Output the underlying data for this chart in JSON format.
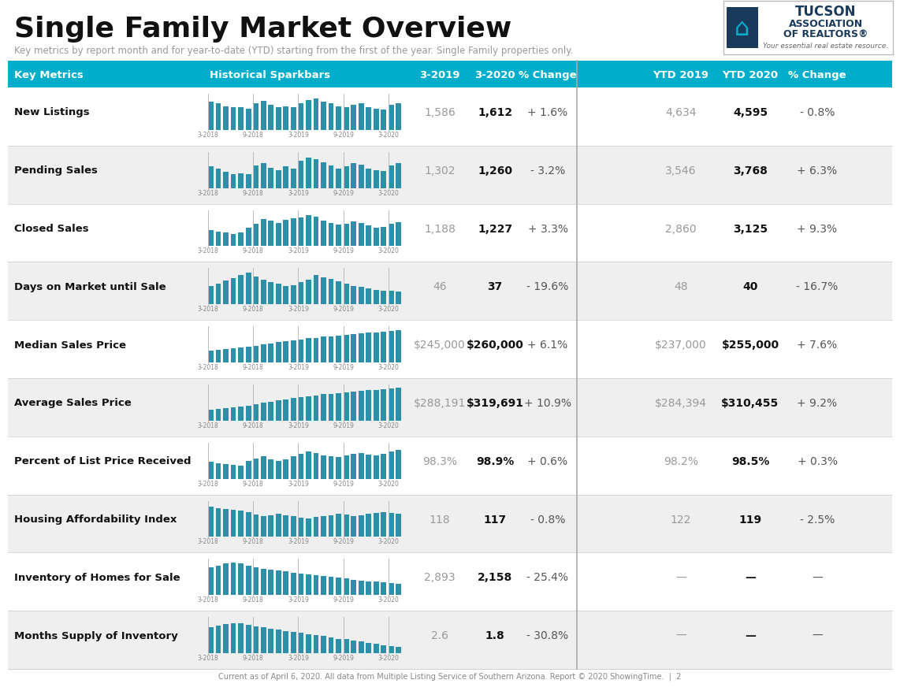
{
  "title": "Single Family Market Overview",
  "subtitle": "Key metrics by report month and for year-to-date (YTD) starting from the first of the year. Single Family properties only.",
  "header_bg": "#00AECC",
  "footer_text": "Current as of April 6, 2020. All data from Multiple Listing Service of Southern Arizona. Report © 2020 ShowingTime.  |  2",
  "rows": [
    {
      "metric": "New Listings",
      "v2019": "1,586",
      "v2020": "1,612",
      "pct": "+ 1.6%",
      "ytd2019": "4,634",
      "ytd2020": "4,595",
      "ytdpct": "- 0.8%",
      "spark": [
        0.85,
        0.8,
        0.72,
        0.68,
        0.7,
        0.65,
        0.82,
        0.88,
        0.75,
        0.7,
        0.72,
        0.68,
        0.8,
        0.9,
        0.95,
        0.85,
        0.8,
        0.72,
        0.68,
        0.75,
        0.8,
        0.7,
        0.65,
        0.62,
        0.75,
        0.82
      ]
    },
    {
      "metric": "Pending Sales",
      "v2019": "1,302",
      "v2020": "1,260",
      "pct": "- 3.2%",
      "ytd2019": "3,546",
      "ytd2020": "3,768",
      "ytdpct": "+ 6.3%",
      "spark": [
        0.65,
        0.6,
        0.5,
        0.42,
        0.45,
        0.42,
        0.68,
        0.75,
        0.62,
        0.55,
        0.65,
        0.6,
        0.82,
        0.92,
        0.88,
        0.78,
        0.68,
        0.6,
        0.65,
        0.75,
        0.7,
        0.6,
        0.55,
        0.52,
        0.68,
        0.75
      ]
    },
    {
      "metric": "Closed Sales",
      "v2019": "1,188",
      "v2020": "1,227",
      "pct": "+ 3.3%",
      "ytd2019": "2,860",
      "ytd2020": "3,125",
      "ytdpct": "+ 9.3%",
      "spark": [
        0.48,
        0.45,
        0.42,
        0.38,
        0.42,
        0.55,
        0.68,
        0.82,
        0.78,
        0.7,
        0.8,
        0.85,
        0.88,
        0.95,
        0.9,
        0.78,
        0.7,
        0.65,
        0.68,
        0.75,
        0.7,
        0.62,
        0.55,
        0.58,
        0.68,
        0.72
      ]
    },
    {
      "metric": "Days on Market until Sale",
      "v2019": "46",
      "v2020": "37",
      "pct": "- 19.6%",
      "ytd2019": "48",
      "ytd2020": "40",
      "ytdpct": "- 16.7%",
      "spark": [
        0.55,
        0.62,
        0.72,
        0.8,
        0.88,
        0.95,
        0.85,
        0.75,
        0.68,
        0.62,
        0.55,
        0.58,
        0.68,
        0.75,
        0.88,
        0.82,
        0.78,
        0.7,
        0.62,
        0.55,
        0.52,
        0.48,
        0.44,
        0.42,
        0.4,
        0.38
      ]
    },
    {
      "metric": "Median Sales Price",
      "v2019": "$245,000",
      "v2020": "$260,000",
      "pct": "+ 6.1%",
      "ytd2019": "$237,000",
      "ytd2020": "$255,000",
      "ytdpct": "+ 7.6%",
      "spark": [
        0.35,
        0.38,
        0.4,
        0.42,
        0.45,
        0.48,
        0.5,
        0.55,
        0.58,
        0.62,
        0.65,
        0.68,
        0.7,
        0.73,
        0.75,
        0.78,
        0.8,
        0.82,
        0.84,
        0.86,
        0.88,
        0.9,
        0.92,
        0.94,
        0.95,
        0.98
      ]
    },
    {
      "metric": "Average Sales Price",
      "v2019": "$288,191",
      "v2020": "$319,691",
      "pct": "+ 10.9%",
      "ytd2019": "$284,394",
      "ytd2020": "$310,455",
      "ytdpct": "+ 9.2%",
      "spark": [
        0.32,
        0.35,
        0.38,
        0.4,
        0.42,
        0.46,
        0.5,
        0.54,
        0.58,
        0.62,
        0.65,
        0.68,
        0.71,
        0.74,
        0.77,
        0.8,
        0.82,
        0.84,
        0.86,
        0.88,
        0.9,
        0.92,
        0.94,
        0.95,
        0.97,
        0.99
      ]
    },
    {
      "metric": "Percent of List Price Received",
      "v2019": "98.3%",
      "v2020": "98.9%",
      "pct": "+ 0.6%",
      "ytd2019": "98.2%",
      "ytd2020": "98.5%",
      "ytdpct": "+ 0.3%",
      "spark": [
        0.52,
        0.48,
        0.45,
        0.42,
        0.4,
        0.55,
        0.62,
        0.68,
        0.58,
        0.55,
        0.6,
        0.68,
        0.75,
        0.82,
        0.78,
        0.72,
        0.68,
        0.65,
        0.7,
        0.76,
        0.78,
        0.74,
        0.72,
        0.76,
        0.82,
        0.88
      ]
    },
    {
      "metric": "Housing Affordability Index",
      "v2019": "118",
      "v2020": "117",
      "pct": "- 0.8%",
      "ytd2019": "122",
      "ytd2020": "119",
      "ytdpct": "- 2.5%",
      "spark": [
        0.92,
        0.88,
        0.85,
        0.82,
        0.8,
        0.75,
        0.68,
        0.62,
        0.65,
        0.7,
        0.65,
        0.62,
        0.58,
        0.55,
        0.6,
        0.63,
        0.66,
        0.7,
        0.68,
        0.62,
        0.65,
        0.7,
        0.72,
        0.75,
        0.72,
        0.7
      ]
    },
    {
      "metric": "Inventory of Homes for Sale",
      "v2019": "2,893",
      "v2020": "2,158",
      "pct": "- 25.4%",
      "ytd2019": "—",
      "ytd2020": "—",
      "ytdpct": "—",
      "spark": [
        0.85,
        0.9,
        0.95,
        0.98,
        0.95,
        0.9,
        0.85,
        0.8,
        0.78,
        0.75,
        0.72,
        0.68,
        0.65,
        0.62,
        0.6,
        0.58,
        0.55,
        0.52,
        0.5,
        0.47,
        0.44,
        0.42,
        0.4,
        0.38,
        0.36,
        0.34
      ]
    },
    {
      "metric": "Months Supply of Inventory",
      "v2019": "2.6",
      "v2020": "1.8",
      "pct": "- 30.8%",
      "ytd2019": "—",
      "ytd2020": "—",
      "ytdpct": "—",
      "spark": [
        0.8,
        0.84,
        0.88,
        0.92,
        0.9,
        0.86,
        0.82,
        0.78,
        0.75,
        0.72,
        0.68,
        0.65,
        0.62,
        0.58,
        0.55,
        0.52,
        0.48,
        0.44,
        0.42,
        0.38,
        0.35,
        0.32,
        0.28,
        0.25,
        0.22,
        0.2
      ]
    }
  ],
  "spark_color": "#2E8FA8",
  "row_bg_even": "#FFFFFF",
  "row_bg_odd": "#EFEFEF"
}
